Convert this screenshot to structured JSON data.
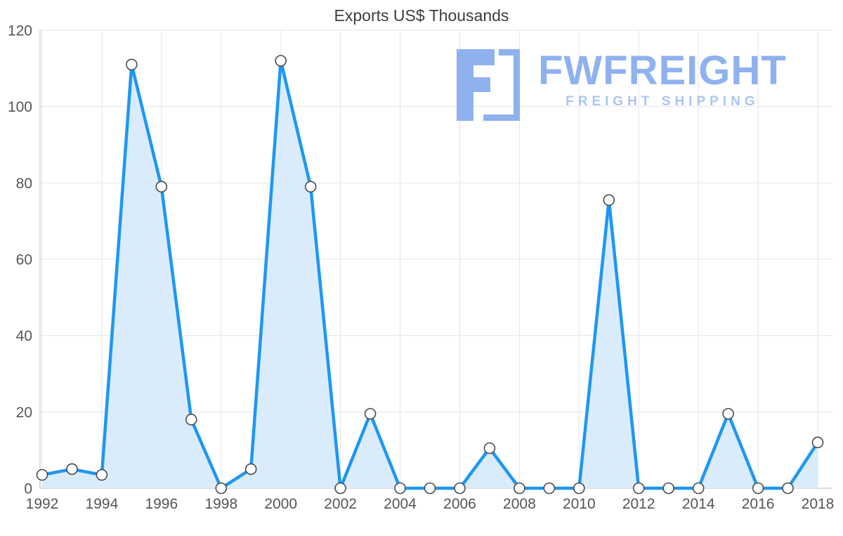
{
  "chart_title": "Exports US$ Thousands",
  "logo": {
    "name": "FWFREIGHT",
    "subtitle": "FREIGHT SHIPPING",
    "color_primary": "#8FB2EF",
    "color_secondary": "#A9C6F3"
  },
  "chart_data": {
    "type": "area",
    "title": "Exports US$ Thousands",
    "xlabel": "",
    "ylabel": "",
    "x": [
      1992,
      1993,
      1994,
      1995,
      1996,
      1997,
      1998,
      1999,
      2000,
      2001,
      2002,
      2003,
      2004,
      2005,
      2006,
      2007,
      2008,
      2009,
      2010,
      2011,
      2012,
      2013,
      2014,
      2015,
      2016,
      2017,
      2018
    ],
    "values": [
      3.5,
      5,
      3.5,
      111,
      79,
      18,
      0,
      5,
      112,
      79,
      0,
      19.5,
      0,
      0,
      0,
      10.5,
      0,
      0,
      0,
      75.5,
      0,
      0,
      0,
      19.5,
      0,
      0,
      12
    ],
    "ylim": [
      0,
      120
    ],
    "yticks": [
      0,
      20,
      40,
      60,
      80,
      100,
      120
    ],
    "xticks": [
      1992,
      1994,
      1996,
      1998,
      2000,
      2002,
      2004,
      2006,
      2008,
      2010,
      2012,
      2014,
      2016,
      2018
    ],
    "grid": true,
    "legend": "none",
    "colors": {
      "line": "#1E97F3",
      "fill": "#DAECFC",
      "marker_fill": "#FFFFFF",
      "marker_stroke": "#4A4A4A",
      "grid": "#E4E4E4",
      "axis": "#C8C8C8",
      "tick_label": "#555555",
      "title": "#3D3D3D"
    }
  }
}
